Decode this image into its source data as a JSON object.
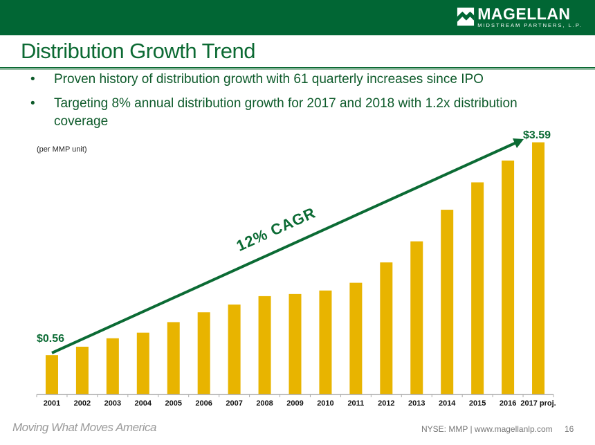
{
  "header": {
    "logo_name": "MAGELLAN",
    "logo_sub": "MIDSTREAM PARTNERS, L.P.",
    "color": "#016634"
  },
  "title": "Distribution Growth Trend",
  "bullets": [
    "Proven history of distribution growth with 61 quarterly increases since IPO",
    "Targeting 8% annual distribution growth for 2017 and 2018 with 1.2x distribution coverage"
  ],
  "chart_data": {
    "type": "bar",
    "unit_note": "(per MMP unit)",
    "categories": [
      "2001",
      "2002",
      "2003",
      "2004",
      "2005",
      "2006",
      "2007",
      "2008",
      "2009",
      "2010",
      "2011",
      "2012",
      "2013",
      "2014",
      "2015",
      "2016",
      "2017 proj."
    ],
    "values": [
      0.56,
      0.68,
      0.8,
      0.88,
      1.03,
      1.17,
      1.28,
      1.4,
      1.43,
      1.48,
      1.59,
      1.88,
      2.18,
      2.63,
      3.02,
      3.33,
      3.59
    ],
    "data_labels": {
      "first": "$0.56",
      "last": "$3.59"
    },
    "annotation": "12% CAGR",
    "ylim": [
      0,
      3.6
    ],
    "grid": false,
    "bar_color": "#e8b400",
    "accent_color": "#0b6b34"
  },
  "footer": {
    "tagline": "Moving What Moves America",
    "ticker_site": "NYSE: MMP | www.magellanlp.com",
    "page_number": "16"
  }
}
